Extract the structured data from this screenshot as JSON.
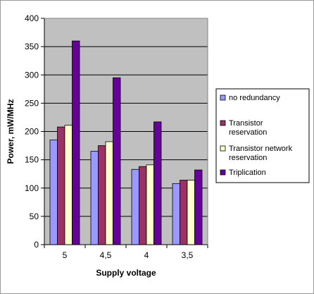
{
  "chart_data": {
    "type": "bar",
    "title": "",
    "xlabel": "Supply voltage",
    "ylabel": "Power, mW/MHz",
    "categories": [
      "5",
      "4,5",
      "4",
      "3,5"
    ],
    "ylim": [
      0,
      400
    ],
    "yticks": [
      0,
      50,
      100,
      150,
      200,
      250,
      300,
      350,
      400
    ],
    "grid": "horizontal",
    "legend_position": "right",
    "plot_background": "#c0c0c0",
    "series": [
      {
        "name": "no redundancy",
        "color": "#9999ff",
        "values": [
          185,
          165,
          133,
          108
        ]
      },
      {
        "name": "Transistor reservation",
        "color": "#993366",
        "values": [
          208,
          175,
          138,
          114
        ]
      },
      {
        "name": "Transistor network reservation",
        "color": "#ffffcc",
        "values": [
          211,
          182,
          141,
          114
        ]
      },
      {
        "name": "Triplication",
        "color": "#660099",
        "values": [
          360,
          295,
          217,
          132
        ]
      }
    ]
  }
}
